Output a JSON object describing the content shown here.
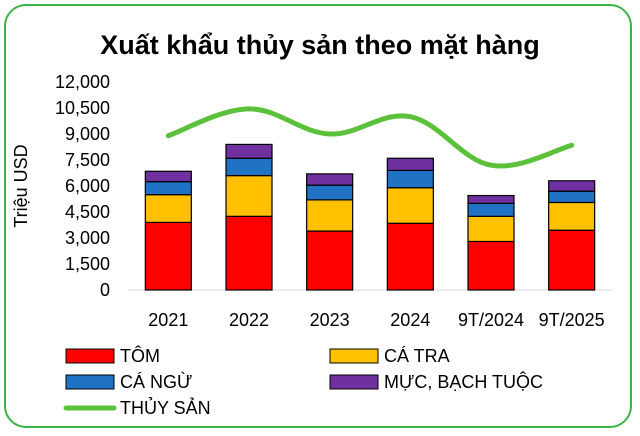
{
  "colors": {
    "tom": "#ff0000",
    "ca_tra": "#ffc000",
    "ca_ngu": "#1f72c4",
    "muc": "#7030a0",
    "thuy_san": "#5cc13a",
    "frame": "#3cb34a"
  },
  "chart_data": {
    "type": "bar",
    "title": "Xuất khẩu thủy sản theo mặt hàng",
    "xlabel": "",
    "ylabel": "Triệu USD",
    "ylim": [
      0,
      12000
    ],
    "yticks": [
      "12,000",
      "10,500",
      "9,000",
      "7,500",
      "6,000",
      "4,500",
      "3,000",
      "1,500",
      "0"
    ],
    "categories": [
      "2021",
      "2022",
      "2023",
      "2024",
      "9T/2024",
      "9T/2025"
    ],
    "stacked": true,
    "series": [
      {
        "name": "TÔM",
        "type": "bar",
        "values": [
          3900,
          4250,
          3400,
          3850,
          2800,
          3450
        ]
      },
      {
        "name": "CÁ TRA",
        "type": "bar",
        "values": [
          1600,
          2350,
          1800,
          2050,
          1450,
          1600
        ]
      },
      {
        "name": "CÁ NGỪ",
        "type": "bar",
        "values": [
          750,
          1000,
          850,
          1000,
          750,
          650
        ]
      },
      {
        "name": "MỰC, BẠCH TUỘC",
        "type": "bar",
        "values": [
          600,
          800,
          650,
          700,
          450,
          600
        ]
      },
      {
        "name": "THỦY SẢN",
        "type": "line",
        "values": [
          8900,
          10450,
          9000,
          10000,
          7200,
          8350
        ]
      }
    ],
    "legend_position": "bottom",
    "grid": false
  }
}
